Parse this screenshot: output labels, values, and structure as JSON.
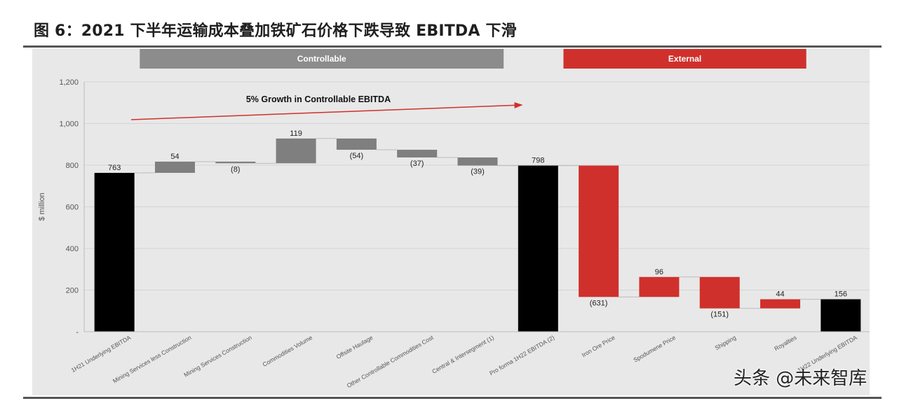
{
  "figure_title": "图 6：2021 下半年运输成本叠加铁矿石价格下跌导致 EBITDA 下滑",
  "watermark": "头条 @未来智库",
  "colors": {
    "total": "#000000",
    "controllable": "#7f7f7f",
    "external": "#d0302c",
    "controllable_header": "#8c8c8c",
    "external_header": "#d0302c",
    "arrow": "#d0302c"
  },
  "chart_data": {
    "type": "bar",
    "subtype": "waterfall",
    "title": "",
    "xlabel": "",
    "ylabel": "$ million",
    "ylim": [
      0,
      1200
    ],
    "yticks": [
      0,
      200,
      400,
      600,
      800,
      1000,
      1200
    ],
    "ytick_labels": [
      "-",
      "200",
      "400",
      "600",
      "800",
      "1,000",
      "1,200"
    ],
    "grid": true,
    "section_headers": [
      {
        "label": "Controllable",
        "from_category": 1,
        "to_category": 6,
        "color": "#8c8c8c"
      },
      {
        "label": "External",
        "from_category": 8,
        "to_category": 11,
        "color": "#d0302c"
      }
    ],
    "annotation": "5% Growth in Controllable EBITDA",
    "bars": [
      {
        "category": "1H21 Underlying EBITDA",
        "kind": "total",
        "start": 0,
        "end": 763,
        "label": "763"
      },
      {
        "category": "Mining Services less Construction",
        "kind": "controllable",
        "start": 763,
        "end": 817,
        "label": "54"
      },
      {
        "category": "Mining Services Construction",
        "kind": "controllable",
        "start": 817,
        "end": 809,
        "label": "(8)"
      },
      {
        "category": "Commodities Volume",
        "kind": "controllable",
        "start": 809,
        "end": 928,
        "label": "119"
      },
      {
        "category": "Offsite Haulage",
        "kind": "controllable",
        "start": 928,
        "end": 874,
        "label": "(54)"
      },
      {
        "category": "Other Controllable Commodities Cost",
        "kind": "controllable",
        "start": 874,
        "end": 837,
        "label": "(37)"
      },
      {
        "category": "Central & Intersegment (1)",
        "kind": "controllable",
        "start": 837,
        "end": 798,
        "label": "(39)"
      },
      {
        "category": "Pro forma 1H22 EBITDA (2)",
        "kind": "total",
        "start": 0,
        "end": 798,
        "label": "798"
      },
      {
        "category": "Iron Ore Price",
        "kind": "external",
        "start": 798,
        "end": 167,
        "label": "(631)"
      },
      {
        "category": "Spodumene Price",
        "kind": "external",
        "start": 167,
        "end": 263,
        "label": "96"
      },
      {
        "category": "Shipping",
        "kind": "external",
        "start": 263,
        "end": 112,
        "label": "(151)"
      },
      {
        "category": "Royalties",
        "kind": "external",
        "start": 112,
        "end": 156,
        "label": "44"
      },
      {
        "category": "1H22 Underlying EBITDA",
        "kind": "total",
        "start": 0,
        "end": 156,
        "label": "156"
      }
    ]
  }
}
